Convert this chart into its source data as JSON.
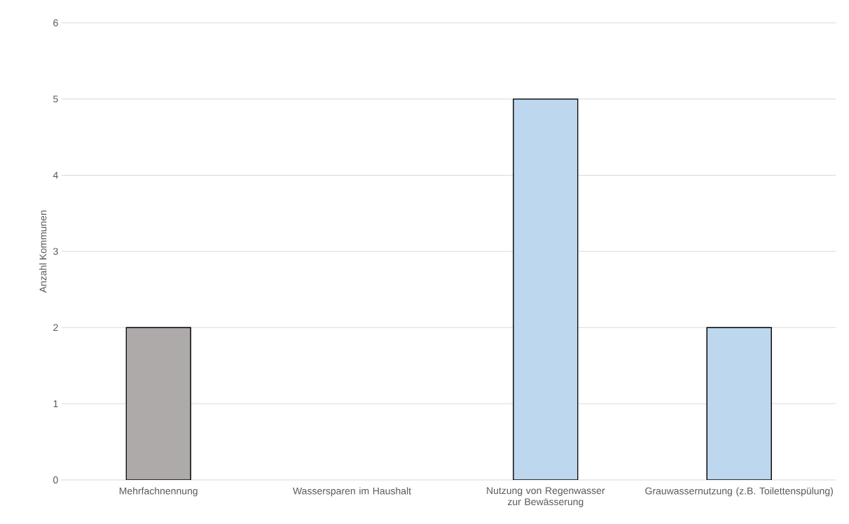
{
  "chart_data": {
    "type": "bar",
    "ylabel": "Anzahl Kommunen",
    "categories": [
      "Mehrfachnennung",
      "Wassersparen im Haushalt",
      "Nutzung von Regenwasser zur Bewässerung",
      "Grauwassernutzung (z.B. Toilettenspülung)"
    ],
    "values": [
      2,
      0,
      5,
      2
    ],
    "colors": [
      "#aeaaaa",
      "#bdd7ee",
      "#bdd7ee",
      "#bdd7ee"
    ],
    "ylim": [
      0,
      6
    ],
    "yticks": [
      0,
      1,
      2,
      3,
      4,
      5,
      6
    ],
    "grid": "y"
  }
}
